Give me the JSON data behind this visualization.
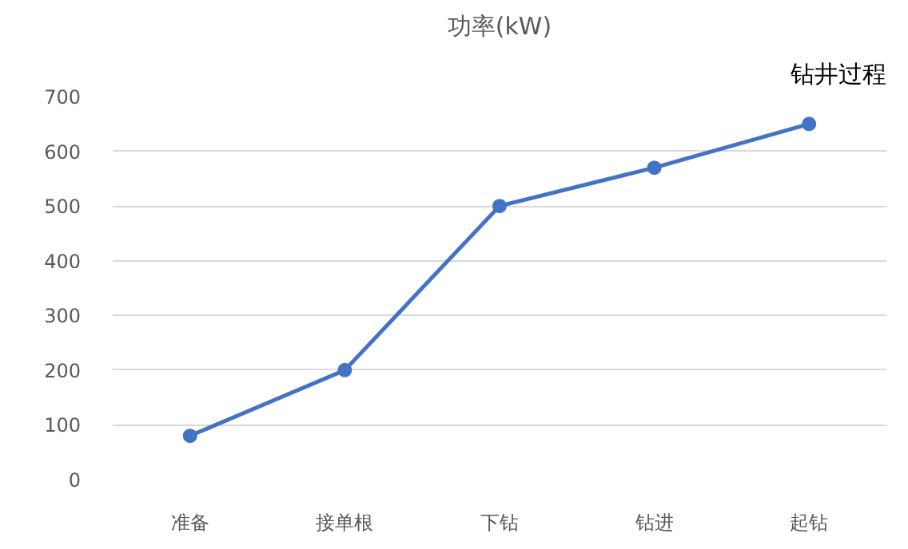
{
  "chart_data": {
    "type": "line",
    "title": "功率(kW)",
    "annotations": [
      "钻井过程"
    ],
    "categories": [
      "准备",
      "接单根",
      "下钻",
      "钻进",
      "起钻"
    ],
    "series": [
      {
        "color": "#4472c4",
        "values": [
          80,
          200,
          500,
          570,
          650
        ]
      }
    ],
    "ylim": [
      0,
      700
    ],
    "yticks": [
      0,
      100,
      200,
      300,
      400,
      500,
      600,
      700
    ],
    "grid": "y",
    "marker": "circle",
    "line_style": "solid"
  }
}
